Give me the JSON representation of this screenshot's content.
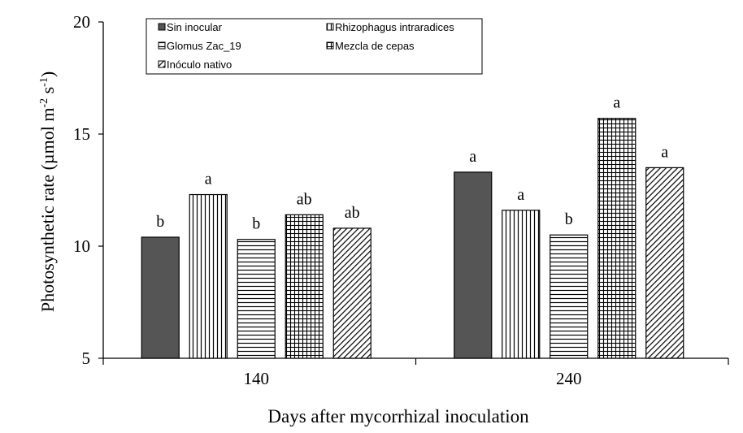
{
  "chart_data": {
    "type": "bar",
    "title": "",
    "xlabel": "Days after mycorrhizal inoculation",
    "ylabel": "Photosynthetic rate (µmol m-2 s-1)",
    "ylabel_parts": {
      "main": "Photosynthetic rate (µmol m",
      "sup1": "-2",
      "mid": " s",
      "sup2": "-1",
      "end": ")"
    },
    "ylim": [
      5,
      20
    ],
    "yticks": [
      5,
      10,
      15,
      20
    ],
    "categories": [
      "140",
      "240"
    ],
    "series": [
      {
        "name": "Sin inocular",
        "pattern": "solid",
        "values": [
          10.4,
          13.3
        ],
        "letters": [
          "b",
          "a"
        ]
      },
      {
        "name": "Rhizophagus intraradices",
        "pattern": "vertical",
        "values": [
          12.3,
          11.6
        ],
        "letters": [
          "a",
          "a"
        ]
      },
      {
        "name": "Glomus Zac_19",
        "pattern": "horizontal",
        "values": [
          10.3,
          10.5
        ],
        "letters": [
          "b",
          "b"
        ]
      },
      {
        "name": "Mezcla de cepas",
        "pattern": "grid",
        "values": [
          11.4,
          15.7
        ],
        "letters": [
          "ab",
          "a"
        ]
      },
      {
        "name": "Inóculo nativo",
        "pattern": "diagonal",
        "values": [
          10.8,
          13.5
        ],
        "letters": [
          "ab",
          "a"
        ]
      }
    ],
    "legend_position": "top-left",
    "grid": false,
    "colors": {
      "solid_fill": "#555555",
      "stroke": "#000000",
      "background": "#ffffff"
    }
  }
}
